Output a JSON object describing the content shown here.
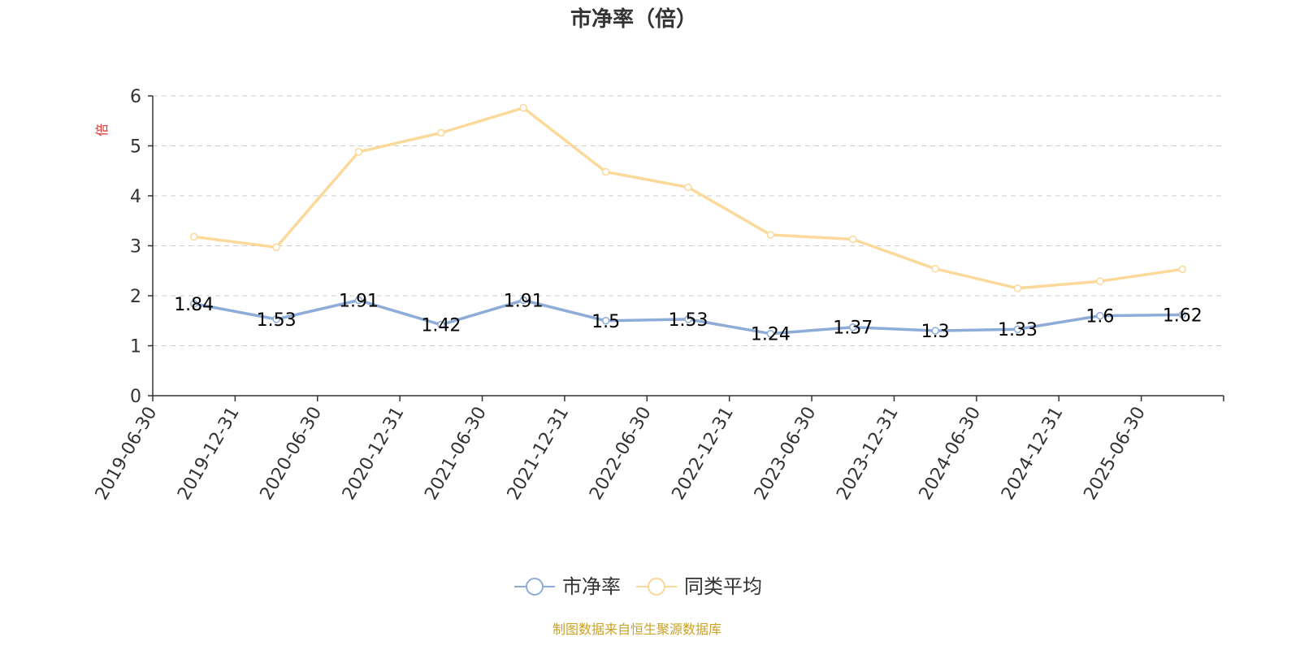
{
  "chart_data": {
    "type": "line",
    "title": "市净率（倍）",
    "ylabel": "倍",
    "ylim": [
      0,
      6
    ],
    "yticks": [
      0,
      1,
      2,
      3,
      4,
      5,
      6
    ],
    "grid": true,
    "legend_position": "bottom",
    "categories": [
      "2019-06-30",
      "2019-12-31",
      "2020-06-30",
      "2020-12-31",
      "2021-06-30",
      "2021-12-31",
      "2022-06-30",
      "2022-12-31",
      "2023-06-30",
      "2023-12-31",
      "2024-06-30",
      "2024-12-31",
      "2025-06-30"
    ],
    "series": [
      {
        "name": "市净率",
        "color": "#8eacd8",
        "values": [
          1.84,
          1.53,
          1.91,
          1.42,
          1.91,
          1.5,
          1.53,
          1.24,
          1.37,
          1.3,
          1.33,
          1.6,
          1.62
        ],
        "labels": [
          "1.84",
          "1.53",
          "1.91",
          "1.42",
          "1.91",
          "1.5",
          "1.53",
          "1.24",
          "1.37",
          "1.3",
          "1.33",
          "1.6",
          "1.62"
        ]
      },
      {
        "name": "同类平均",
        "color": "#fbd99a",
        "values": [
          3.18,
          2.97,
          4.88,
          5.26,
          5.76,
          4.48,
          4.17,
          3.22,
          3.13,
          2.54,
          2.15,
          2.29,
          2.53
        ]
      }
    ]
  },
  "colors": {
    "axis": "#333333",
    "grid": "#cccccc",
    "ylabel": "#e0312a",
    "source": "#c9a227"
  },
  "source_note": "制图数据来自恒生聚源数据库"
}
